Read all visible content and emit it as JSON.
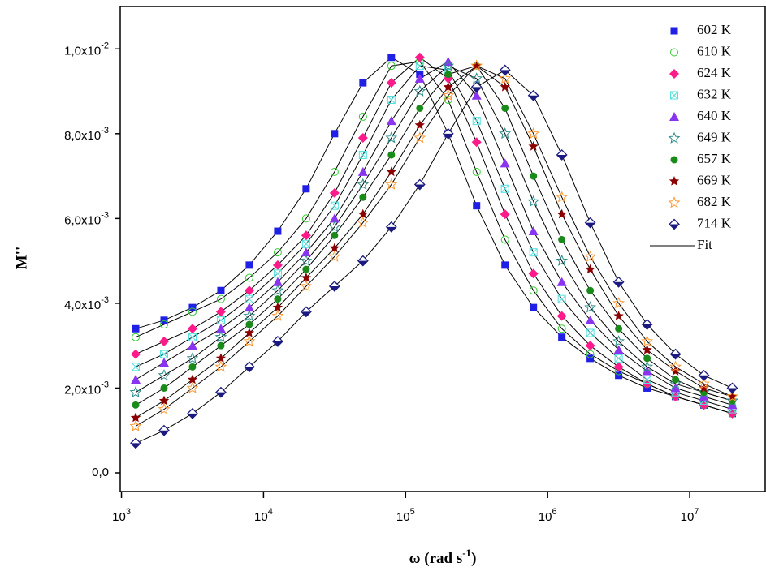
{
  "chart_data": {
    "type": "scatter",
    "y_label": "M''",
    "x_label": {
      "text": "ω (rad s",
      "sup": "-1",
      "tail": ")"
    },
    "fit_label": "Fit",
    "log_x": true,
    "xlim": [
      980,
      34000000
    ],
    "ylim": [
      -0.00044,
      0.011
    ],
    "xticks": [
      {
        "value": 1000,
        "label": "10",
        "exponent": "3"
      },
      {
        "value": 10000,
        "label": "10",
        "exponent": "4"
      },
      {
        "value": 100000,
        "label": "10",
        "exponent": "5"
      },
      {
        "value": 1000000,
        "label": "10",
        "exponent": "6"
      },
      {
        "value": 10000000,
        "label": "10",
        "exponent": "7"
      }
    ],
    "yticks": [
      {
        "value": 0,
        "label": "0,0"
      },
      {
        "value": 0.002,
        "label": "2,0x10",
        "exponent": "-3"
      },
      {
        "value": 0.004,
        "label": "4,0x10",
        "exponent": "-3"
      },
      {
        "value": 0.006,
        "label": "6,0x10",
        "exponent": "-3"
      },
      {
        "value": 0.008,
        "label": "8,0x10",
        "exponent": "-3"
      },
      {
        "value": 0.01,
        "label": "1,0x10",
        "exponent": "-2"
      }
    ],
    "x": [
      1259,
      1995,
      3162,
      5012,
      7943,
      12590,
      19950,
      31620,
      50120,
      79430,
      125900,
      199500,
      316200,
      501200,
      794300,
      1259000,
      1995000,
      3162000,
      5012000,
      7943000,
      12590000,
      19950000
    ],
    "series": [
      {
        "name": "602 K",
        "color": "#1f1fe6",
        "marker": "square",
        "values": [
          0.0034,
          0.0036,
          0.0039,
          0.0043,
          0.0049,
          0.0057,
          0.0067,
          0.008,
          0.0092,
          0.0098,
          0.0094,
          0.008,
          0.0063,
          0.0049,
          0.0039,
          0.0032,
          0.0027,
          0.0023,
          0.002,
          0.0018,
          0.0016,
          0.0014
        ]
      },
      {
        "name": "610 K",
        "color": "#33cc33",
        "marker": "open-circle",
        "values": [
          0.0032,
          0.0035,
          0.0038,
          0.0041,
          0.0046,
          0.0052,
          0.006,
          0.0071,
          0.0084,
          0.0096,
          0.0097,
          0.0088,
          0.0071,
          0.0055,
          0.0043,
          0.0034,
          0.0028,
          0.0024,
          0.0021,
          0.0018,
          0.0016,
          0.0014
        ]
      },
      {
        "name": "624 K",
        "color": "#ff1a8c",
        "marker": "diamond",
        "values": [
          0.0028,
          0.0031,
          0.0034,
          0.0038,
          0.0043,
          0.0049,
          0.0056,
          0.0066,
          0.0079,
          0.0092,
          0.0098,
          0.0093,
          0.0078,
          0.0061,
          0.0047,
          0.0037,
          0.003,
          0.0025,
          0.0021,
          0.0018,
          0.0016,
          0.0014
        ]
      },
      {
        "name": "632 K",
        "color": "#55e0e0",
        "marker": "crossed-square",
        "values": [
          0.0025,
          0.0028,
          0.0032,
          0.0036,
          0.0041,
          0.0047,
          0.0054,
          0.0063,
          0.0075,
          0.0088,
          0.0096,
          0.0095,
          0.0083,
          0.0067,
          0.0052,
          0.0041,
          0.0033,
          0.0027,
          0.0022,
          0.0019,
          0.0017,
          0.0015
        ]
      },
      {
        "name": "640 K",
        "color": "#8a33f0",
        "marker": "triangle",
        "values": [
          0.0022,
          0.0026,
          0.003,
          0.0034,
          0.0039,
          0.0045,
          0.0052,
          0.006,
          0.0071,
          0.0083,
          0.0093,
          0.0097,
          0.0089,
          0.0073,
          0.0057,
          0.0045,
          0.0036,
          0.0029,
          0.0024,
          0.002,
          0.0018,
          0.0016
        ]
      },
      {
        "name": "649 K",
        "color": "#2e8b8b",
        "marker": "open-star",
        "values": [
          0.0019,
          0.0023,
          0.0027,
          0.0032,
          0.0037,
          0.0043,
          0.005,
          0.0058,
          0.0068,
          0.0079,
          0.009,
          0.0096,
          0.0093,
          0.008,
          0.0064,
          0.005,
          0.0039,
          0.0031,
          0.0025,
          0.0021,
          0.0019,
          0.0017
        ]
      },
      {
        "name": "657 K",
        "color": "#1a8a1a",
        "marker": "circle",
        "values": [
          0.0016,
          0.002,
          0.0025,
          0.003,
          0.0035,
          0.0041,
          0.0048,
          0.0056,
          0.0065,
          0.0075,
          0.0086,
          0.0094,
          0.0096,
          0.0086,
          0.007,
          0.0055,
          0.0043,
          0.0034,
          0.0027,
          0.0022,
          0.0019,
          0.0017
        ]
      },
      {
        "name": "669 K",
        "color": "#8b0000",
        "marker": "star",
        "values": [
          0.0013,
          0.0017,
          0.0022,
          0.0027,
          0.0033,
          0.0039,
          0.0046,
          0.0053,
          0.0061,
          0.0071,
          0.0082,
          0.0091,
          0.0096,
          0.0091,
          0.0077,
          0.0061,
          0.0048,
          0.0037,
          0.0029,
          0.0024,
          0.002,
          0.0018
        ]
      },
      {
        "name": "682 K",
        "color": "#ff9933",
        "marker": "open-star",
        "values": [
          0.0011,
          0.0015,
          0.002,
          0.0025,
          0.0031,
          0.0037,
          0.0044,
          0.0051,
          0.0059,
          0.0068,
          0.0079,
          0.0089,
          0.0096,
          0.0093,
          0.008,
          0.0065,
          0.0051,
          0.004,
          0.0031,
          0.0025,
          0.0021,
          0.0018
        ]
      },
      {
        "name": "714 K",
        "color": "#1a1a80",
        "marker": "half-diamond",
        "values": [
          0.0007,
          0.001,
          0.0014,
          0.0019,
          0.0025,
          0.0031,
          0.0038,
          0.0044,
          0.005,
          0.0058,
          0.0068,
          0.008,
          0.0091,
          0.0095,
          0.0089,
          0.0075,
          0.0059,
          0.0045,
          0.0035,
          0.0028,
          0.0023,
          0.002
        ]
      }
    ]
  }
}
